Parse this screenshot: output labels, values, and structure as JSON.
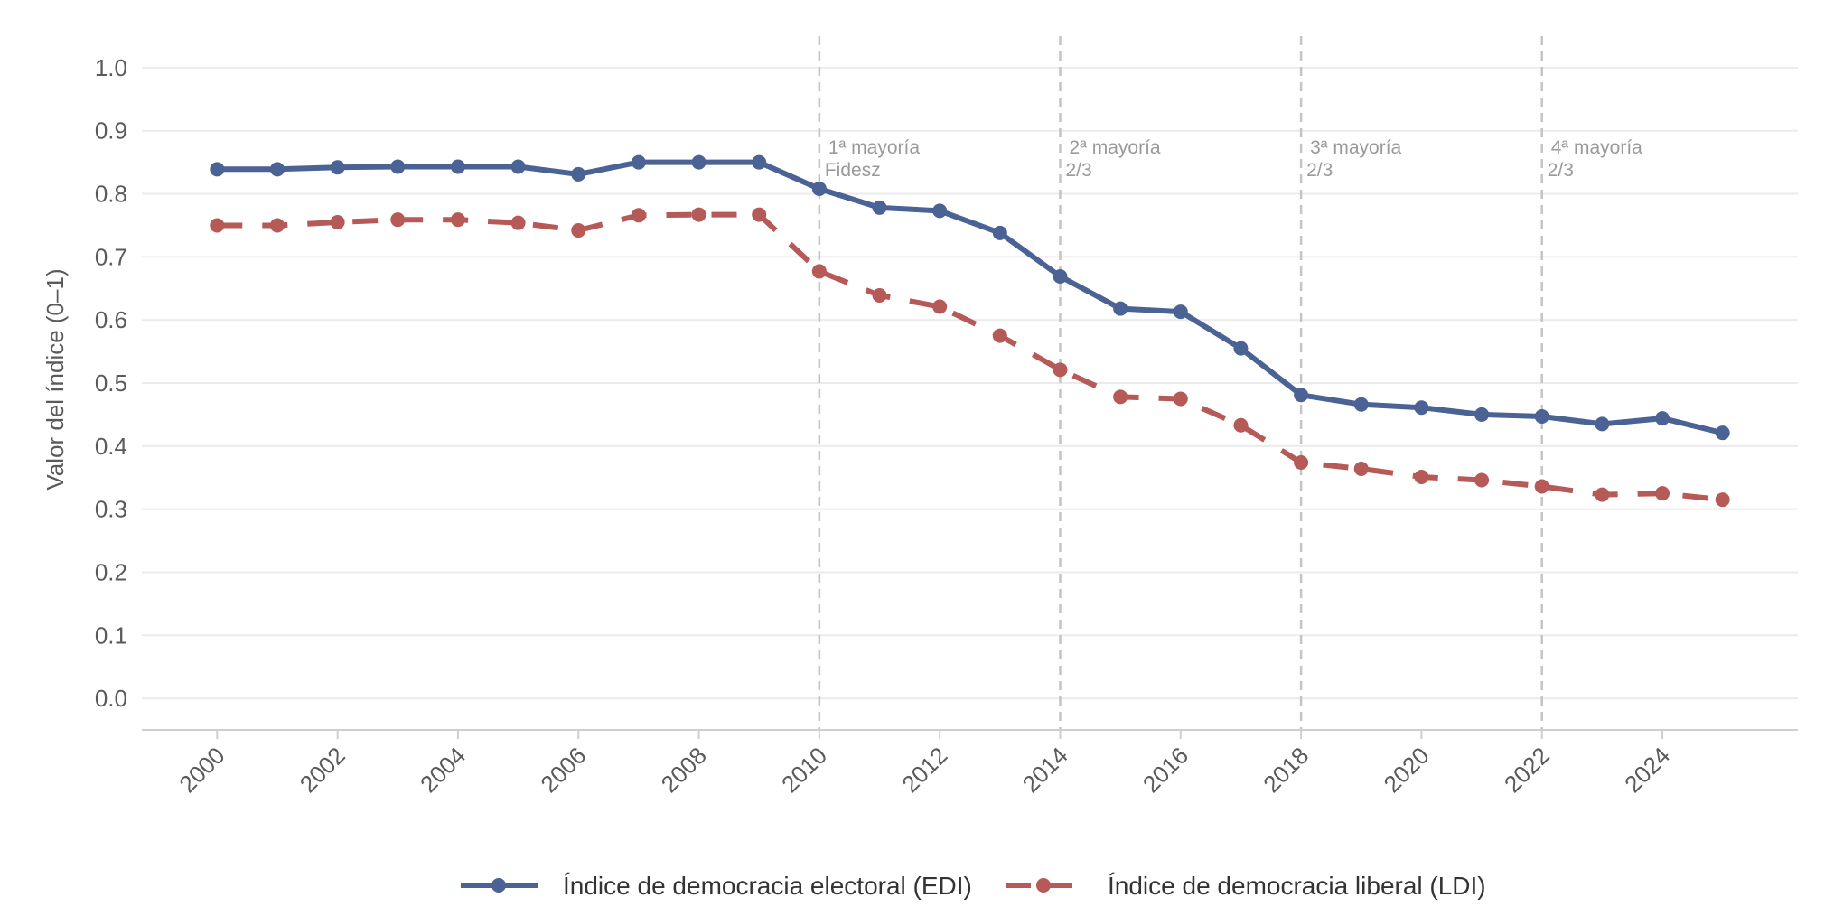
{
  "chart_data": {
    "type": "line",
    "title": "",
    "xlabel": "",
    "ylabel": "Valor del índice (0–1)",
    "x": [
      2000,
      2001,
      2002,
      2003,
      2004,
      2005,
      2006,
      2007,
      2008,
      2009,
      2010,
      2011,
      2012,
      2013,
      2014,
      2015,
      2016,
      2017,
      2018,
      2019,
      2020,
      2021,
      2022,
      2023,
      2024,
      2025
    ],
    "xlim": [
      1998.75,
      2026.25
    ],
    "ylim": [
      -0.05,
      1.05
    ],
    "xticks": [
      2000,
      2002,
      2004,
      2006,
      2008,
      2010,
      2012,
      2014,
      2016,
      2018,
      2020,
      2022,
      2024
    ],
    "xtick_labels": [
      "2000",
      "2002",
      "2004",
      "2006",
      "2008",
      "2010",
      "2012",
      "2014",
      "2016",
      "2018",
      "2020",
      "2022",
      "2024"
    ],
    "yticks": [
      0.0,
      0.1,
      0.2,
      0.3,
      0.4,
      0.5,
      0.6,
      0.7,
      0.8,
      0.9,
      1.0
    ],
    "ytick_labels": [
      "0.0",
      "0.1",
      "0.2",
      "0.3",
      "0.4",
      "0.5",
      "0.6",
      "0.7",
      "0.8",
      "0.9",
      "1.0"
    ],
    "grid": true,
    "legend_position": "bottom",
    "series": [
      {
        "name": "Índice de democracia electoral (EDI)",
        "color": "#4a6294",
        "style": "solid",
        "values": [
          0.839,
          0.839,
          0.842,
          0.843,
          0.843,
          0.843,
          0.831,
          0.85,
          0.85,
          0.85,
          0.808,
          0.778,
          0.773,
          0.738,
          0.669,
          0.618,
          0.613,
          0.555,
          0.481,
          0.466,
          0.461,
          0.45,
          0.447,
          0.435,
          0.444,
          0.421
        ]
      },
      {
        "name": "Índice de democracia liberal (LDI)",
        "color": "#b55a57",
        "style": "dashed",
        "values": [
          0.75,
          0.75,
          0.755,
          0.759,
          0.759,
          0.754,
          0.742,
          0.766,
          0.767,
          0.767,
          0.677,
          0.639,
          0.621,
          0.575,
          0.521,
          0.478,
          0.475,
          0.433,
          0.374,
          0.364,
          0.351,
          0.346,
          0.336,
          0.323,
          0.325,
          0.315
        ]
      }
    ],
    "annotations": [
      {
        "x": 2010,
        "line1": "1ª mayoría",
        "line2": "Fidesz"
      },
      {
        "x": 2014,
        "line1": "2ª mayoría",
        "line2": "2/3"
      },
      {
        "x": 2018,
        "line1": "3ª mayoría",
        "line2": "2/3"
      },
      {
        "x": 2022,
        "line1": "4ª mayoría",
        "line2": "2/3"
      }
    ]
  },
  "colors": {
    "grid": "#ebebeb",
    "axis": "#cfcfcf",
    "vline": "#c4c4c4"
  }
}
